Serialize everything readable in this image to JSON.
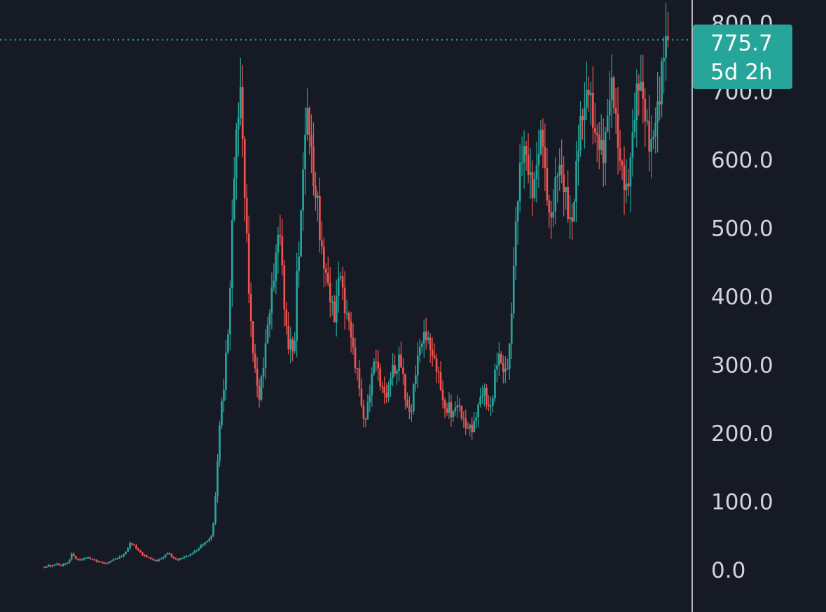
{
  "chart_data": {
    "type": "candlestick",
    "y_axis": {
      "ticks": [
        "800.0",
        "700.0",
        "600.0",
        "500.0",
        "400.0",
        "300.0",
        "200.0",
        "100.0",
        "0.0"
      ],
      "tick_values": [
        800,
        700,
        600,
        500,
        400,
        300,
        200,
        100,
        0
      ],
      "range": [
        0,
        800
      ]
    },
    "last_price": {
      "value": "775.7",
      "countdown": "5d 2h"
    },
    "price_path": [
      5,
      4,
      6,
      5,
      7,
      9,
      6,
      8,
      10,
      12,
      25,
      18,
      15,
      14,
      16,
      18,
      17,
      16,
      14,
      13,
      12,
      10,
      10,
      12,
      14,
      16,
      18,
      20,
      24,
      30,
      40,
      38,
      32,
      28,
      22,
      20,
      18,
      16,
      15,
      14,
      16,
      18,
      22,
      26,
      20,
      16,
      14,
      16,
      18,
      20,
      22,
      24,
      28,
      30,
      34,
      38,
      40,
      44,
      50,
      90,
      170,
      240,
      270,
      330,
      380,
      520,
      600,
      660,
      690,
      560,
      480,
      380,
      330,
      290,
      250,
      280,
      310,
      350,
      380,
      420,
      460,
      520,
      450,
      380,
      330,
      340,
      300,
      420,
      470,
      560,
      650,
      670,
      620,
      560,
      560,
      490,
      450,
      430,
      400,
      380,
      360,
      420,
      440,
      400,
      380,
      370,
      330,
      300,
      280,
      240,
      210,
      230,
      260,
      300,
      320,
      290,
      270,
      260,
      250,
      280,
      290,
      280,
      310,
      300,
      260,
      240,
      230,
      270,
      300,
      320,
      330,
      340,
      330,
      320,
      310,
      300,
      280,
      250,
      230,
      240,
      220,
      230,
      240,
      230,
      220,
      210,
      215,
      210,
      220,
      240,
      250,
      260,
      240,
      230,
      250,
      300,
      320,
      310,
      290,
      300,
      330,
      420,
      500,
      560,
      600,
      620,
      600,
      580,
      560,
      600,
      620,
      640,
      560,
      520,
      500,
      540,
      590,
      600,
      580,
      560,
      520,
      500,
      540,
      600,
      640,
      660,
      690,
      720,
      680,
      650,
      640,
      620,
      600,
      640,
      680,
      700,
      660,
      620,
      600,
      580,
      560,
      600,
      640,
      680,
      700,
      690,
      660,
      640,
      620,
      650,
      680,
      700,
      740,
      770,
      775.7
    ]
  },
  "colors": {
    "background": "#161a25",
    "up": "#26a69a",
    "down": "#ef5350",
    "axis_line": "#b2b5be",
    "tick_text": "#d1d4dc",
    "tag_bg": "#26a69a",
    "price_line": "#26a69a"
  }
}
